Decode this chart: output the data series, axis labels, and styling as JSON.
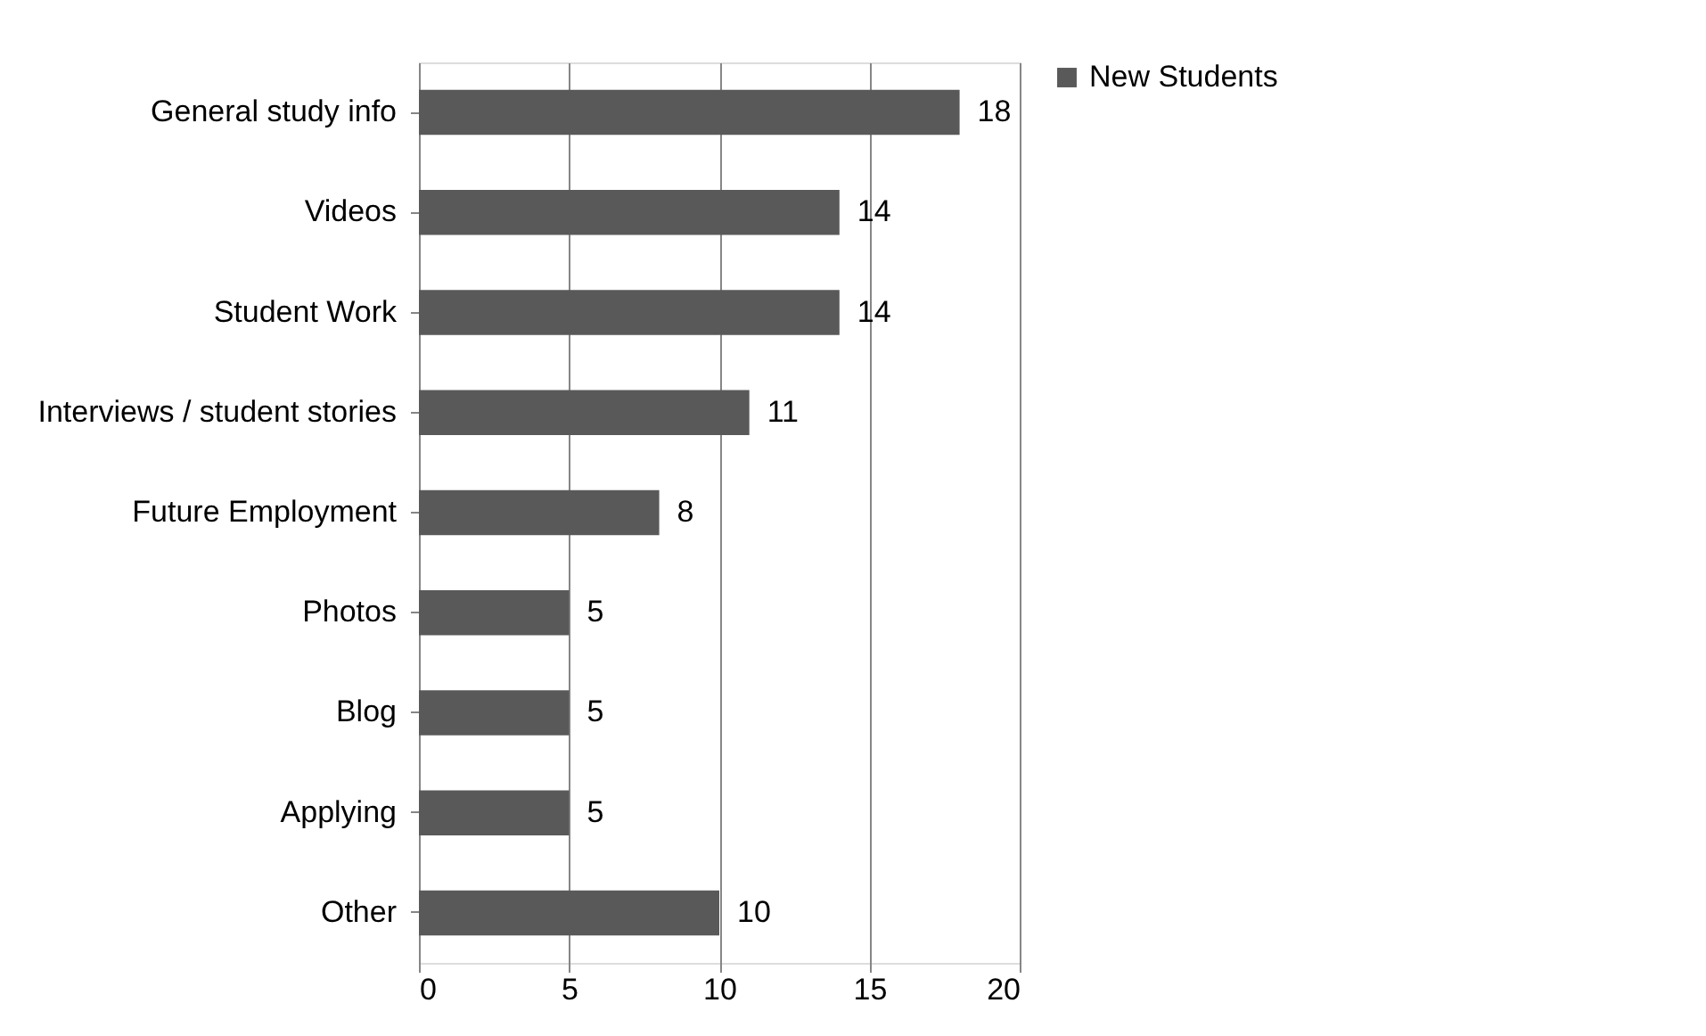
{
  "chart_data": {
    "type": "bar",
    "orientation": "horizontal",
    "categories": [
      "General study info",
      "Videos",
      "Student Work",
      "Interviews / student stories",
      "Future Employment",
      "Photos",
      "Blog",
      "Applying",
      "Other"
    ],
    "series": [
      {
        "name": "New Students",
        "color": "#595959",
        "values": [
          18,
          14,
          14,
          11,
          8,
          5,
          5,
          5,
          10
        ]
      }
    ],
    "xlim": [
      0,
      20
    ],
    "xticks": [
      0,
      5,
      10,
      15,
      20
    ],
    "grid": "x",
    "legend": "right",
    "data_labels": true
  }
}
